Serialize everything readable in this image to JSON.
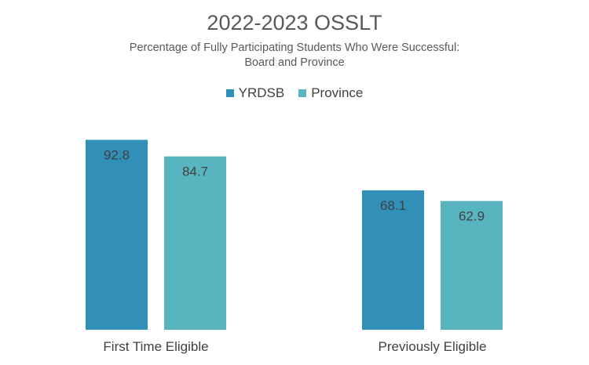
{
  "chart_data": {
    "type": "bar",
    "title": "2022-2023 OSSLT",
    "subtitle_lines": [
      "Percentage of Fully Participating Students Who Were Successful:",
      "Board and Province"
    ],
    "categories": [
      "First Time Eligible",
      "Previously Eligible"
    ],
    "series": [
      {
        "name": "YRDSB",
        "values": [
          92.8,
          68.1
        ],
        "color": "#3090b8"
      },
      {
        "name": "Province",
        "values": [
          84.7,
          62.9
        ],
        "color": "#58b5bf"
      }
    ],
    "ylim": [
      0,
      100
    ],
    "grid": false,
    "legend_position": "top",
    "xlabel": "",
    "ylabel": ""
  }
}
